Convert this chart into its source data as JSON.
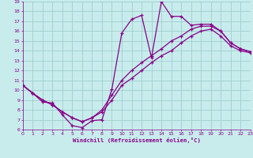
{
  "xlabel": "Windchill (Refroidissement éolien,°C)",
  "bg_color": "#c8ecec",
  "grid_color": "#a0cece",
  "line_color": "#880088",
  "xlim": [
    0,
    23
  ],
  "ylim": [
    6,
    19
  ],
  "xticks": [
    0,
    1,
    2,
    3,
    4,
    5,
    6,
    7,
    8,
    9,
    10,
    11,
    12,
    13,
    14,
    15,
    16,
    17,
    18,
    19,
    20,
    21,
    22,
    23
  ],
  "yticks": [
    6,
    7,
    8,
    9,
    10,
    11,
    12,
    13,
    14,
    15,
    16,
    17,
    18,
    19
  ],
  "line1_x": [
    0,
    1,
    2,
    3,
    4,
    5,
    6,
    7,
    8,
    9,
    10,
    11,
    12,
    13,
    14,
    15,
    16,
    17,
    18,
    19,
    20,
    21,
    22,
    23
  ],
  "line1_y": [
    10.5,
    9.7,
    8.8,
    8.7,
    7.5,
    6.4,
    6.2,
    6.9,
    7.0,
    10.1,
    15.8,
    17.2,
    17.6,
    13.3,
    19.0,
    17.5,
    17.5,
    16.6,
    16.7,
    16.7,
    16.0,
    14.8,
    14.2,
    13.9
  ],
  "line2_x": [
    0,
    1,
    2,
    3,
    4,
    5,
    6,
    7,
    8,
    9,
    10,
    11,
    12,
    13,
    14,
    15,
    16,
    17,
    18,
    19,
    20,
    21,
    22,
    23
  ],
  "line2_y": [
    10.5,
    9.7,
    9.0,
    8.5,
    7.8,
    7.2,
    6.8,
    7.2,
    8.0,
    9.5,
    11.0,
    12.0,
    12.8,
    13.5,
    14.2,
    15.0,
    15.5,
    16.2,
    16.5,
    16.5,
    16.0,
    14.8,
    14.2,
    13.9
  ],
  "line3_x": [
    0,
    1,
    2,
    3,
    4,
    5,
    6,
    7,
    8,
    9,
    10,
    11,
    12,
    13,
    14,
    15,
    16,
    17,
    18,
    19,
    20,
    21,
    22,
    23
  ],
  "line3_y": [
    10.5,
    9.7,
    9.0,
    8.5,
    7.8,
    7.2,
    6.8,
    7.2,
    7.8,
    9.0,
    10.5,
    11.2,
    12.0,
    12.8,
    13.5,
    14.0,
    14.8,
    15.5,
    16.0,
    16.2,
    15.5,
    14.5,
    14.0,
    13.8
  ]
}
